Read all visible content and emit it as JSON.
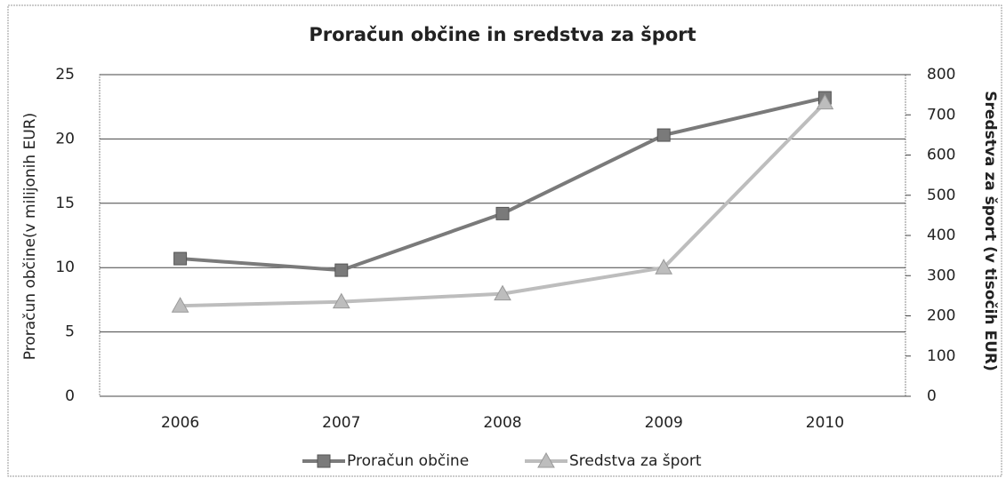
{
  "chart_data": {
    "type": "line",
    "title": "Proračun občine in sredstva za šport",
    "y_label": "Proračun občine(v milijonih EUR)",
    "y2_label": "Sredstva za šport (v tisočih EUR)",
    "categories": [
      "2006",
      "2007",
      "2008",
      "2009",
      "2010"
    ],
    "series": [
      {
        "name": "Proračun občine",
        "color": "#7a7a7a",
        "marker": "square",
        "values": [
          10.7,
          9.8,
          14.2,
          20.3,
          23.2
        ]
      },
      {
        "name": "Sredstva za šport",
        "color": "#bdbdbd",
        "marker": "triangle",
        "axis": "y2",
        "values": [
          225,
          235,
          255,
          320,
          730
        ]
      }
    ],
    "ylim": [
      0,
      25
    ],
    "yticks": [
      0,
      5,
      10,
      15,
      20,
      25
    ],
    "y2lim": [
      0,
      800
    ],
    "y2ticks": [
      0,
      100,
      200,
      300,
      400,
      500,
      600,
      700,
      800
    ],
    "grid": true,
    "legend": "bottom"
  }
}
